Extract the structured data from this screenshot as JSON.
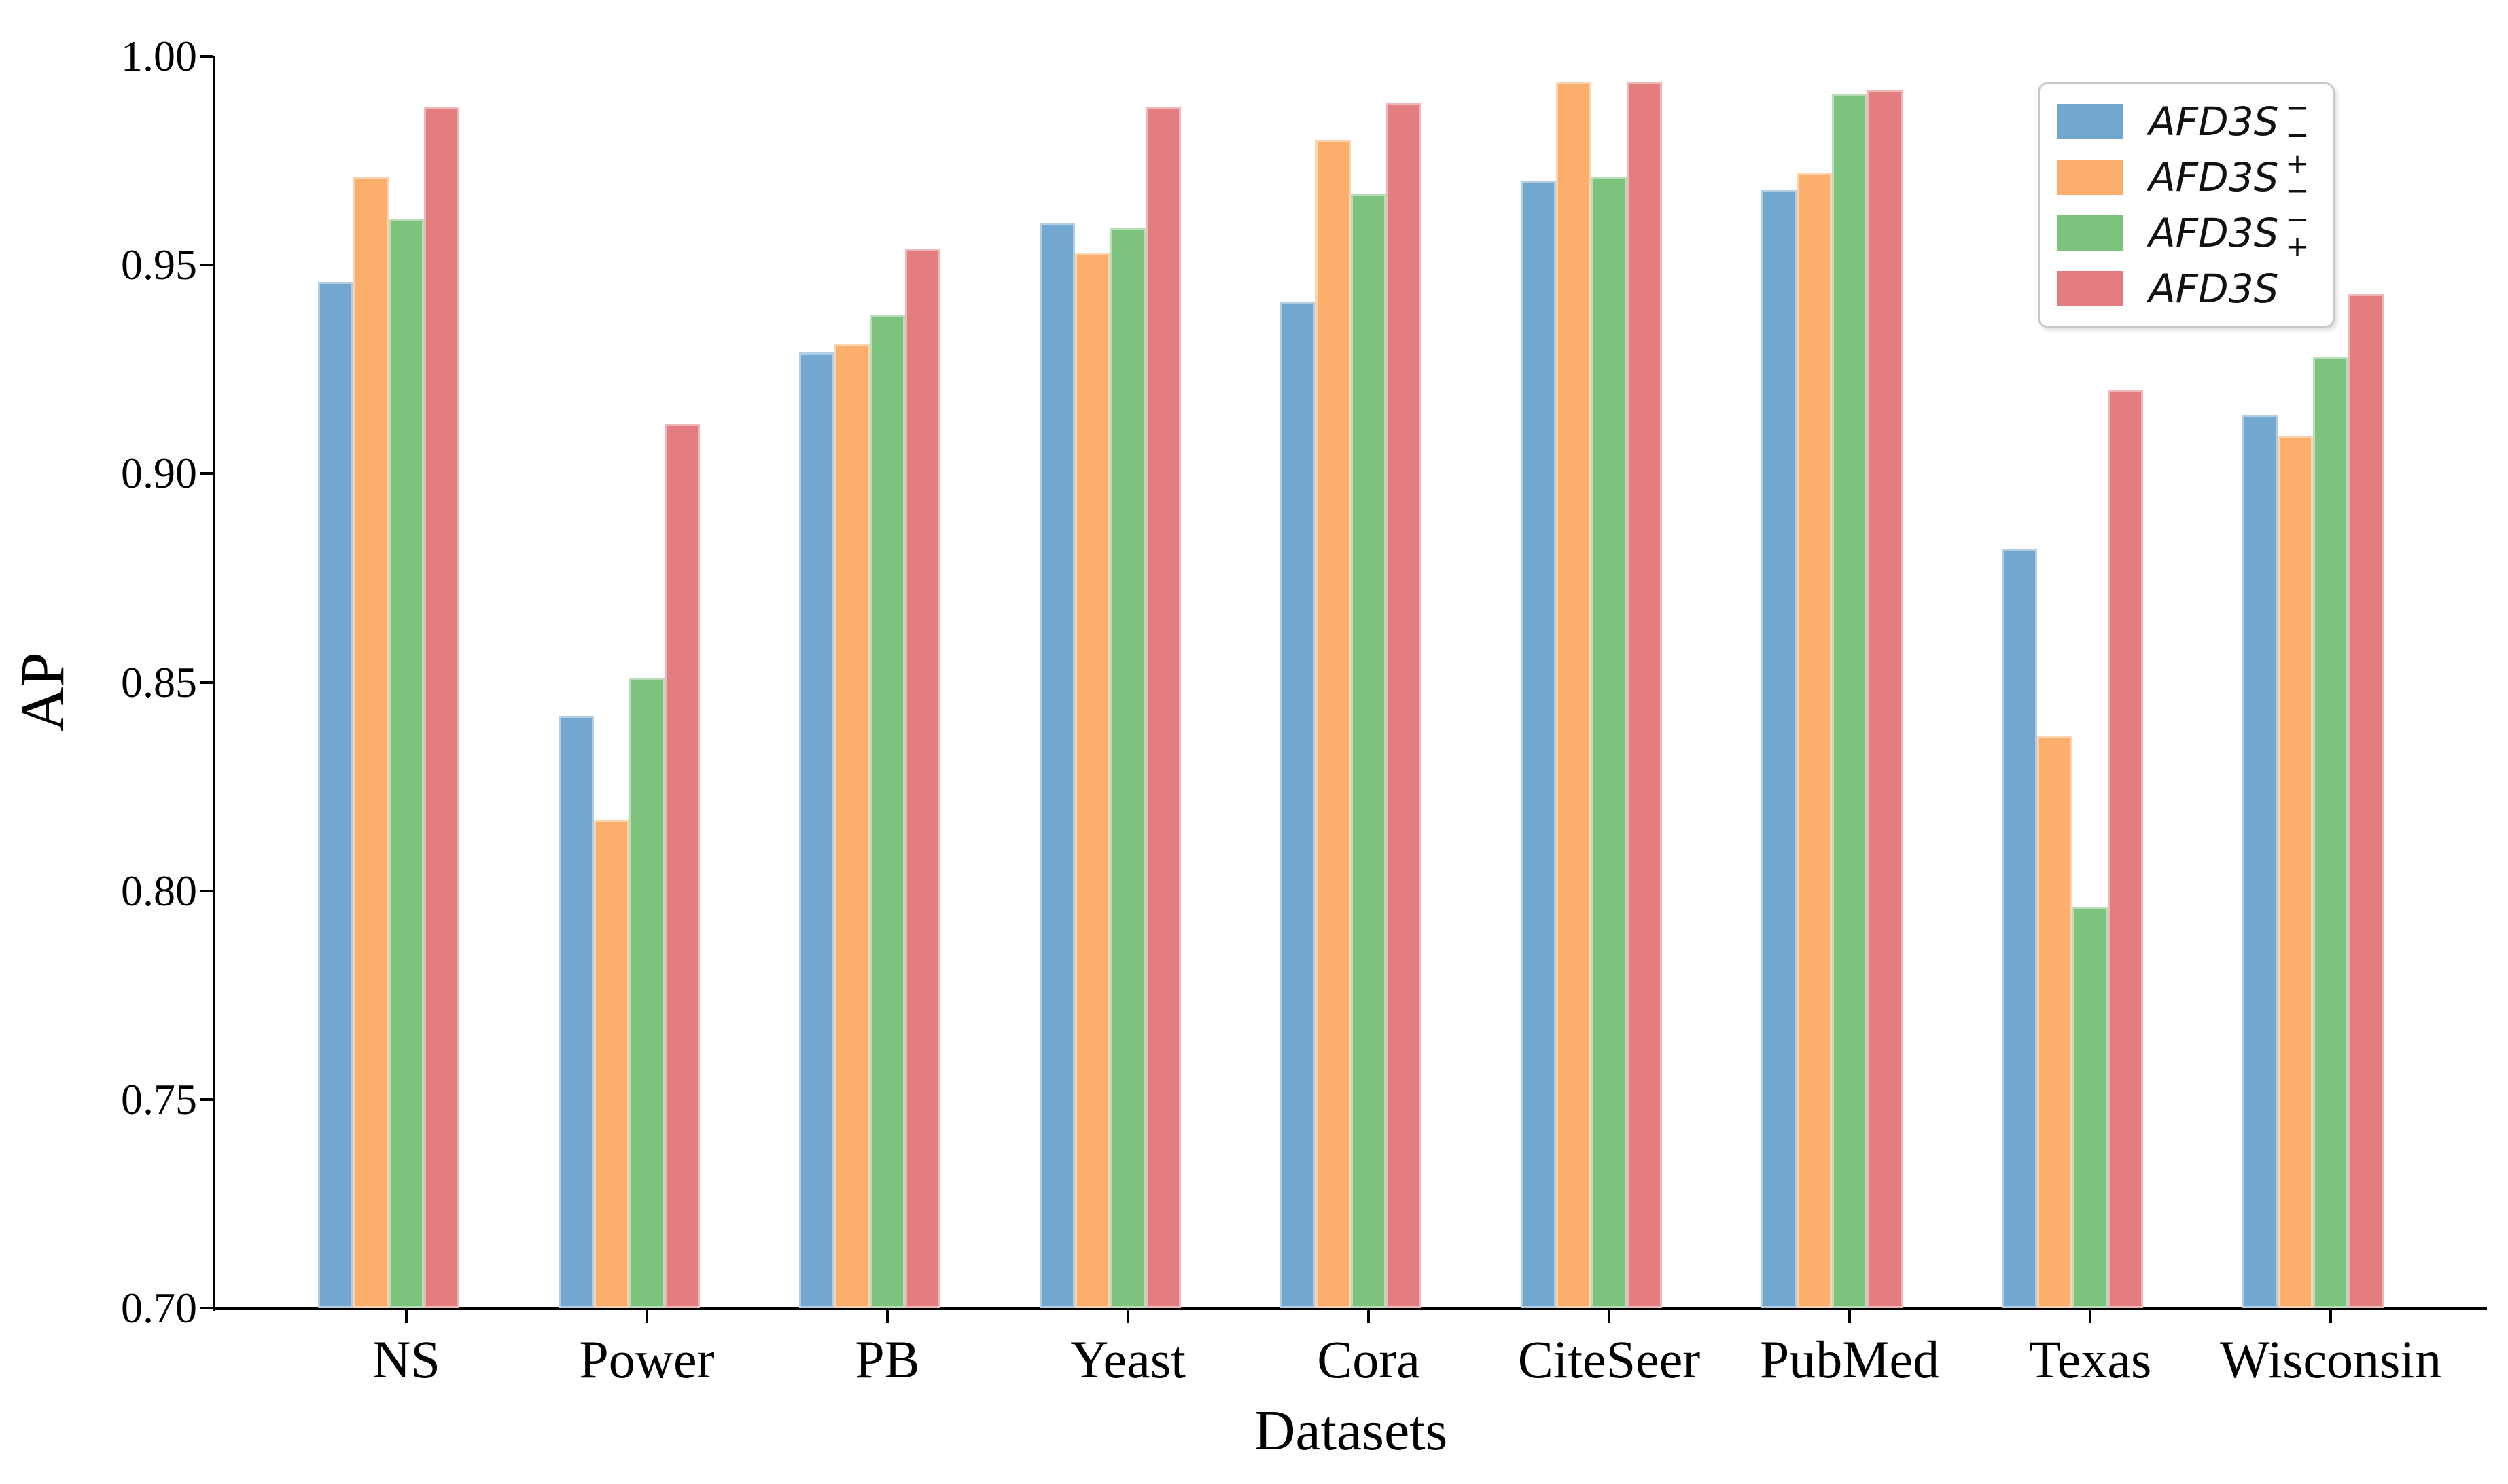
{
  "figure": {
    "ylabel": "AP",
    "xlabel": "Datasets"
  },
  "chart_data": {
    "type": "bar",
    "title": "",
    "xlabel": "Datasets",
    "ylabel": "AP",
    "ylim": [
      0.7,
      1.0
    ],
    "ytick_labels": [
      "1.00",
      "0.95",
      "0.90",
      "0.85",
      "0.80",
      "0.75",
      "0.70"
    ],
    "ytick_values": [
      1.0,
      0.95,
      0.9,
      0.85,
      0.8,
      0.75,
      0.7
    ],
    "grid": false,
    "legend_position": "upper right",
    "categories": [
      "NS",
      "Power",
      "PB",
      "Yeast",
      "Cora",
      "CiteSeer",
      "PubMed",
      "Texas",
      "Wisconsin"
    ],
    "series": [
      {
        "name": "AFD3S-sup-minus-sub-minus",
        "label": {
          "base": "AFD3S",
          "sup": "−",
          "sub": "−"
        },
        "color": "#72A7CF",
        "values": [
          0.946,
          0.842,
          0.929,
          0.96,
          0.941,
          0.97,
          0.968,
          0.882,
          0.914
        ]
      },
      {
        "name": "AFD3S-sup-plus-sub-minus",
        "label": {
          "base": "AFD3S",
          "sup": "+",
          "sub": "−"
        },
        "color": "#FCAE6C",
        "values": [
          0.971,
          0.817,
          0.931,
          0.953,
          0.98,
          0.994,
          0.972,
          0.837,
          0.909
        ]
      },
      {
        "name": "AFD3S-sup-minus-sub-plus",
        "label": {
          "base": "AFD3S",
          "sup": "−",
          "sub": "+"
        },
        "color": "#7DC37E",
        "values": [
          0.961,
          0.851,
          0.938,
          0.959,
          0.967,
          0.971,
          0.991,
          0.796,
          0.928
        ]
      },
      {
        "name": "AFD3S",
        "label": {
          "base": "AFD3S",
          "sup": "",
          "sub": ""
        },
        "color": "#E37D80",
        "values": [
          0.988,
          0.912,
          0.954,
          0.988,
          0.989,
          0.994,
          0.992,
          0.92,
          0.943
        ]
      }
    ]
  }
}
